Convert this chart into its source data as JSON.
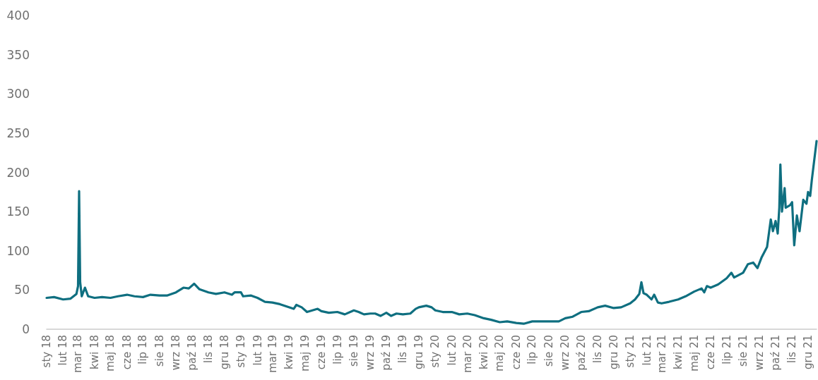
{
  "chart_data": {
    "type": "line",
    "color": "#0f6f80",
    "grid": false,
    "marker": "none",
    "line_style": "solid",
    "x": [
      "2018-01-01",
      "2018-01-15",
      "2018-02-01",
      "2018-02-15",
      "2018-02-26",
      "2018-03-01",
      "2018-03-03",
      "2018-03-05",
      "2018-03-08",
      "2018-03-14",
      "2018-03-20",
      "2018-04-01",
      "2018-04-15",
      "2018-05-01",
      "2018-05-15",
      "2018-06-01",
      "2018-06-15",
      "2018-07-01",
      "2018-07-15",
      "2018-08-01",
      "2018-08-15",
      "2018-09-01",
      "2018-09-15",
      "2018-09-25",
      "2018-10-05",
      "2018-10-15",
      "2018-11-01",
      "2018-11-15",
      "2018-12-01",
      "2018-12-15",
      "2018-12-20",
      "2019-01-01",
      "2019-01-05",
      "2019-01-20",
      "2019-02-01",
      "2019-02-15",
      "2019-03-01",
      "2019-03-15",
      "2019-04-01",
      "2019-04-10",
      "2019-04-15",
      "2019-04-25",
      "2019-05-05",
      "2019-05-15",
      "2019-05-25",
      "2019-06-01",
      "2019-06-15",
      "2019-07-01",
      "2019-07-15",
      "2019-08-01",
      "2019-08-10",
      "2019-08-20",
      "2019-09-01",
      "2019-09-10",
      "2019-09-20",
      "2019-10-01",
      "2019-10-10",
      "2019-10-20",
      "2019-11-01",
      "2019-11-15",
      "2019-11-25",
      "2019-12-01",
      "2019-12-15",
      "2019-12-25",
      "2020-01-01",
      "2020-01-15",
      "2020-02-01",
      "2020-02-15",
      "2020-03-01",
      "2020-03-15",
      "2020-04-01",
      "2020-04-15",
      "2020-05-01",
      "2020-05-15",
      "2020-06-01",
      "2020-06-15",
      "2020-07-01",
      "2020-07-15",
      "2020-08-01",
      "2020-08-20",
      "2020-09-01",
      "2020-09-15",
      "2020-10-01",
      "2020-10-15",
      "2020-11-01",
      "2020-11-15",
      "2020-12-01",
      "2020-12-15",
      "2021-01-01",
      "2021-01-10",
      "2021-01-18",
      "2021-01-22",
      "2021-01-26",
      "2021-02-01",
      "2021-02-10",
      "2021-02-15",
      "2021-02-22",
      "2021-03-01",
      "2021-03-15",
      "2021-04-01",
      "2021-04-15",
      "2021-05-01",
      "2021-05-15",
      "2021-05-20",
      "2021-05-25",
      "2021-06-01",
      "2021-06-15",
      "2021-07-01",
      "2021-07-10",
      "2021-07-15",
      "2021-08-01",
      "2021-08-10",
      "2021-08-20",
      "2021-08-28",
      "2021-09-05",
      "2021-09-15",
      "2021-09-22",
      "2021-09-26",
      "2021-10-01",
      "2021-10-05",
      "2021-10-08",
      "2021-10-10",
      "2021-10-13",
      "2021-10-18",
      "2021-10-20",
      "2021-10-28",
      "2021-11-01",
      "2021-11-05",
      "2021-11-10",
      "2021-11-15",
      "2021-11-22",
      "2021-11-28",
      "2021-12-01",
      "2021-12-05",
      "2021-12-08",
      "2021-12-17"
    ],
    "values": [
      40,
      41,
      38,
      39,
      45,
      55,
      176,
      60,
      42,
      53,
      42,
      40,
      41,
      40,
      42,
      44,
      42,
      41,
      44,
      43,
      43,
      47,
      53,
      52,
      58,
      51,
      47,
      45,
      47,
      44,
      47,
      47,
      42,
      43,
      40,
      35,
      34,
      32,
      28,
      26,
      31,
      28,
      22,
      24,
      26,
      23,
      21,
      22,
      19,
      24,
      22,
      19,
      20,
      20,
      17,
      21,
      17,
      20,
      19,
      20,
      26,
      28,
      30,
      28,
      24,
      22,
      22,
      19,
      20,
      18,
      14,
      12,
      9,
      10,
      8,
      7,
      10,
      10,
      10,
      10,
      14,
      16,
      22,
      23,
      28,
      30,
      27,
      28,
      33,
      38,
      45,
      60,
      46,
      44,
      38,
      44,
      34,
      33,
      35,
      38,
      42,
      48,
      52,
      47,
      55,
      53,
      57,
      65,
      72,
      66,
      72,
      83,
      85,
      78,
      92,
      105,
      140,
      125,
      138,
      122,
      155,
      210,
      150,
      180,
      155,
      158,
      162,
      107,
      145,
      125,
      165,
      160,
      175,
      170,
      190,
      240
    ],
    "xlim": [
      "2018-01-01",
      "2021-12-17"
    ],
    "xticks": [
      {
        "value": "2018-01-01",
        "label": "sty 18"
      },
      {
        "value": "2018-02-01",
        "label": "lut 18"
      },
      {
        "value": "2018-03-01",
        "label": "mar 18"
      },
      {
        "value": "2018-04-01",
        "label": "kwi 18"
      },
      {
        "value": "2018-05-01",
        "label": "maj 18"
      },
      {
        "value": "2018-06-01",
        "label": "cze 18"
      },
      {
        "value": "2018-07-01",
        "label": "lip 18"
      },
      {
        "value": "2018-08-01",
        "label": "sie 18"
      },
      {
        "value": "2018-09-01",
        "label": "wrz 18"
      },
      {
        "value": "2018-10-01",
        "label": "paź 18"
      },
      {
        "value": "2018-11-01",
        "label": "lis 18"
      },
      {
        "value": "2018-12-01",
        "label": "gru 18"
      },
      {
        "value": "2019-01-01",
        "label": "sty 19"
      },
      {
        "value": "2019-02-01",
        "label": "lut 19"
      },
      {
        "value": "2019-03-01",
        "label": "mar 19"
      },
      {
        "value": "2019-04-01",
        "label": "kwi 19"
      },
      {
        "value": "2019-05-01",
        "label": "maj 19"
      },
      {
        "value": "2019-06-01",
        "label": "cze 19"
      },
      {
        "value": "2019-07-01",
        "label": "lip 19"
      },
      {
        "value": "2019-08-01",
        "label": "sie 19"
      },
      {
        "value": "2019-09-01",
        "label": "wrz 19"
      },
      {
        "value": "2019-10-01",
        "label": "paź 19"
      },
      {
        "value": "2019-11-01",
        "label": "lis 19"
      },
      {
        "value": "2019-12-01",
        "label": "gru 19"
      },
      {
        "value": "2020-01-01",
        "label": "sty 20"
      },
      {
        "value": "2020-02-01",
        "label": "lut 20"
      },
      {
        "value": "2020-03-01",
        "label": "mar 20"
      },
      {
        "value": "2020-04-01",
        "label": "kwi 20"
      },
      {
        "value": "2020-05-01",
        "label": "maj 20"
      },
      {
        "value": "2020-06-01",
        "label": "cze 20"
      },
      {
        "value": "2020-07-01",
        "label": "lip 20"
      },
      {
        "value": "2020-08-01",
        "label": "sie 20"
      },
      {
        "value": "2020-09-01",
        "label": "wrz 20"
      },
      {
        "value": "2020-10-01",
        "label": "paź 20"
      },
      {
        "value": "2020-11-01",
        "label": "lis 20"
      },
      {
        "value": "2020-12-01",
        "label": "gru 20"
      },
      {
        "value": "2021-01-01",
        "label": "sty 21"
      },
      {
        "value": "2021-02-01",
        "label": "lut 21"
      },
      {
        "value": "2021-03-01",
        "label": "mar 21"
      },
      {
        "value": "2021-04-01",
        "label": "kwi 21"
      },
      {
        "value": "2021-05-01",
        "label": "maj 21"
      },
      {
        "value": "2021-06-01",
        "label": "cze 21"
      },
      {
        "value": "2021-07-01",
        "label": "lip 21"
      },
      {
        "value": "2021-08-01",
        "label": "sie 21"
      },
      {
        "value": "2021-09-01",
        "label": "wrz 21"
      },
      {
        "value": "2021-10-01",
        "label": "paź 21"
      },
      {
        "value": "2021-11-01",
        "label": "lis 21"
      },
      {
        "value": "2021-12-01",
        "label": "gru 21"
      }
    ],
    "ylim": [
      0,
      400
    ],
    "yticks": [
      0,
      50,
      100,
      150,
      200,
      250,
      300,
      350,
      400
    ]
  }
}
